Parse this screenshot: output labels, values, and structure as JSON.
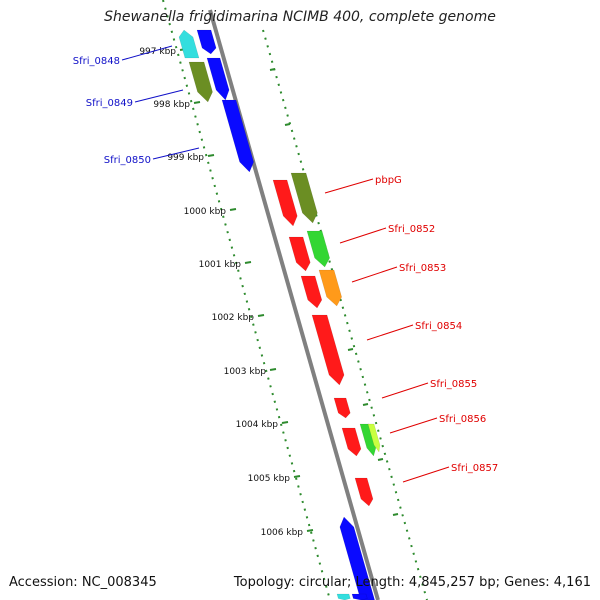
{
  "title": "Shewanella frigidimarina NCIMB 400, complete genome",
  "accession": "Accession: NC_008345",
  "topology": "Topology: circular; Length: 4,845,257 bp; Genes: 4,161",
  "scale_labels": [
    "997 kbp",
    "998 kbp",
    "999 kbp",
    "1000 kbp",
    "1001 kbp",
    "1002 kbp",
    "1003 kbp",
    "1004 kbp",
    "1005 kbp",
    "1006 kbp"
  ],
  "gene_labels": [
    {
      "text": "Sfri_0848",
      "color": "#1010c8"
    },
    {
      "text": "Sfri_0849",
      "color": "#1010c8"
    },
    {
      "text": "Sfri_0850",
      "color": "#1010c8"
    },
    {
      "text": "pbpG",
      "color": "#e00000"
    },
    {
      "text": "Sfri_0852",
      "color": "#e00000"
    },
    {
      "text": "Sfri_0853",
      "color": "#e00000"
    },
    {
      "text": "Sfri_0854",
      "color": "#e00000"
    },
    {
      "text": "Sfri_0855",
      "color": "#e00000"
    },
    {
      "text": "Sfri_0856",
      "color": "#e00000"
    },
    {
      "text": "Sfri_0857",
      "color": "#e00000"
    }
  ],
  "colors": {
    "backbone": "#808080",
    "ruler": "#2e8b2e",
    "red": "#ff1a1a",
    "blue": "#0a0aff",
    "cyan": "#33dede",
    "olive": "#6b8e23",
    "green": "#33d633",
    "orange": "#ff9a1a",
    "yellowgreen": "#c8ff40"
  }
}
